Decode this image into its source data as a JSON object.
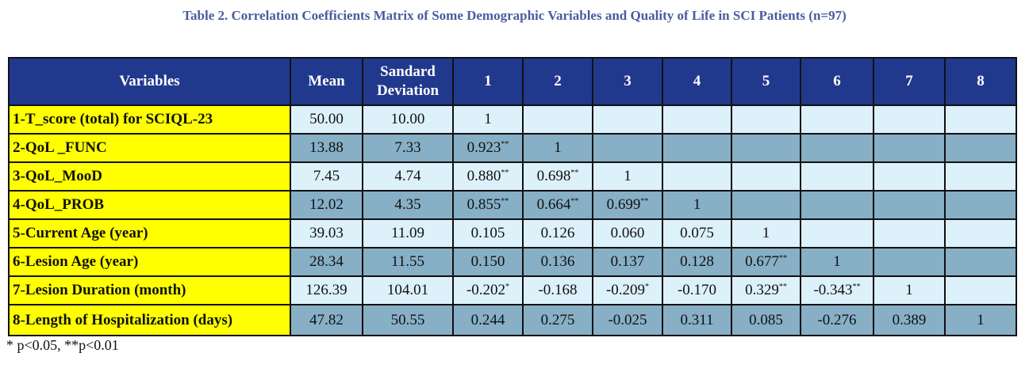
{
  "title": "Table 2. Correlation Coefficients Matrix of Some Demographic Variables and Quality of Life in SCI Patients (n=97)",
  "table": {
    "header": [
      "Variables",
      "Mean",
      "Sandard Deviation",
      "1",
      "2",
      "3",
      "4",
      "5",
      "6",
      "7",
      "8"
    ],
    "rows": [
      [
        "1-T_score (total) for SCIQL-23",
        "50.00",
        "10.00",
        "1"
      ],
      [
        "2-QoL _FUNC",
        "13.88",
        "7.33",
        {
          "text": "0.923",
          "sup": "**"
        },
        "1"
      ],
      [
        "3-QoL_MooD",
        "7.45",
        "4.74",
        {
          "text": "0.880",
          "sup": "**"
        },
        {
          "text": "0.698",
          "sup": "**"
        },
        "1"
      ],
      [
        "4-QoL_PROB",
        "12.02",
        "4.35",
        {
          "text": "0.855",
          "sup": "**"
        },
        {
          "text": "0.664",
          "sup": "**"
        },
        {
          "text": "0.699",
          "sup": "**"
        },
        "1"
      ],
      [
        "5-Current Age (year)",
        "39.03",
        "11.09",
        "0.105",
        "0.126",
        "0.060",
        "0.075",
        "1"
      ],
      [
        "6-Lesion Age (year)",
        "28.34",
        "11.55",
        "0.150",
        "0.136",
        "0.137",
        "0.128",
        {
          "text": "0.677",
          "sup": "**"
        },
        "1"
      ],
      [
        "7-Lesion Duration (month)",
        "126.39",
        "104.01",
        {
          "text": "-0.202",
          "sup": "*"
        },
        "-0.168",
        {
          "text": "-0.209",
          "sup": "*"
        },
        "-0.170",
        {
          "text": "0.329",
          "sup": "**"
        },
        {
          "text": "-0.343",
          "sup": "**"
        },
        "1"
      ],
      [
        "8-Length of Hospitalization (days)",
        "47.82",
        "50.55",
        "0.244",
        "0.275",
        "-0.025",
        "0.311",
        "0.085",
        "-0.276",
        "0.389",
        "1"
      ]
    ]
  },
  "footnote": "* p<0.05, **p<0.01"
}
